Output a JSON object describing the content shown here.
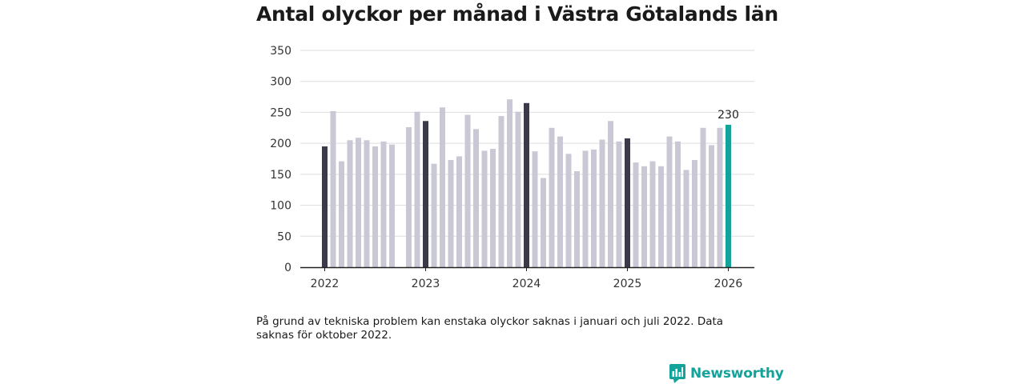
{
  "brand": {
    "name": "Newsworthy"
  },
  "colors": {
    "bar": "#c9c8d4",
    "january": "#3b3a48",
    "latest": "#13a39a",
    "grid": "#dddddd",
    "axis": "#222222"
  },
  "note": "På grund av tekniska problem kan enstaka olyckor saknas i januari och juli 2022. Data saknas för oktober 2022.",
  "chart_data": {
    "type": "bar",
    "title": "Antal olyckor per månad i Västra Götalands län",
    "xlabel": "",
    "ylabel": "",
    "ylim": [
      0,
      350
    ],
    "yticks": [
      0,
      50,
      100,
      150,
      200,
      250,
      300,
      350
    ],
    "xticks": [
      "2022",
      "2023",
      "2024",
      "2025",
      "2026"
    ],
    "grid": true,
    "categories": [
      "2022-01",
      "2022-02",
      "2022-03",
      "2022-04",
      "2022-05",
      "2022-06",
      "2022-07",
      "2022-08",
      "2022-09",
      "2022-10",
      "2022-11",
      "2022-12",
      "2023-01",
      "2023-02",
      "2023-03",
      "2023-04",
      "2023-05",
      "2023-06",
      "2023-07",
      "2023-08",
      "2023-09",
      "2023-10",
      "2023-11",
      "2023-12",
      "2024-01",
      "2024-02",
      "2024-03",
      "2024-04",
      "2024-05",
      "2024-06",
      "2024-07",
      "2024-08",
      "2024-09",
      "2024-10",
      "2024-11",
      "2024-12",
      "2025-01",
      "2025-02",
      "2025-03",
      "2025-04",
      "2025-05",
      "2025-06",
      "2025-07",
      "2025-08",
      "2025-09",
      "2025-10",
      "2025-11",
      "2025-12",
      "2026-01"
    ],
    "values": [
      195,
      252,
      171,
      205,
      209,
      205,
      195,
      203,
      198,
      null,
      226,
      251,
      236,
      167,
      258,
      173,
      179,
      246,
      223,
      188,
      191,
      244,
      271,
      251,
      265,
      187,
      144,
      225,
      211,
      183,
      155,
      188,
      190,
      206,
      236,
      203,
      208,
      169,
      163,
      171,
      163,
      211,
      203,
      157,
      173,
      225,
      197,
      225,
      230
    ],
    "highlight": {
      "january_indices": [
        0,
        12,
        24,
        36
      ],
      "latest_index": 48,
      "latest_label": "230"
    }
  }
}
